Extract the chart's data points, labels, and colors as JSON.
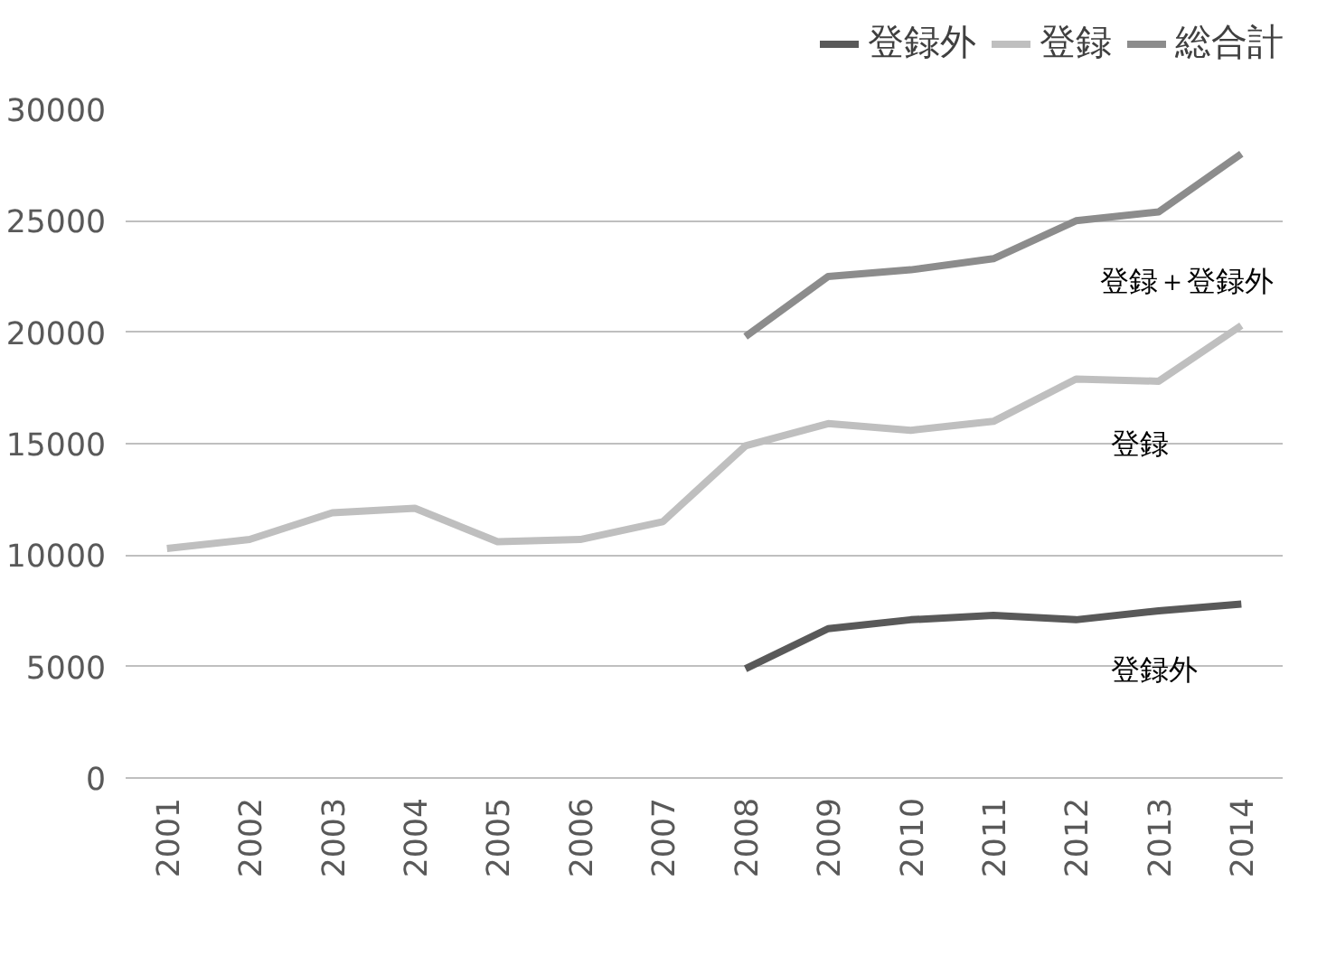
{
  "chart_data": {
    "type": "line",
    "categories": [
      "2001",
      "2002",
      "2003",
      "2004",
      "2005",
      "2006",
      "2007",
      "2008",
      "2009",
      "2010",
      "2011",
      "2012",
      "2013",
      "2014"
    ],
    "series": [
      {
        "name": "登録外",
        "color": "#595959",
        "values": [
          null,
          null,
          null,
          null,
          null,
          null,
          null,
          4900,
          6700,
          7100,
          7300,
          7100,
          7500,
          7800
        ]
      },
      {
        "name": "登録",
        "color": "#bfbfbf",
        "values": [
          10300,
          10700,
          11900,
          12100,
          10600,
          10700,
          11500,
          14900,
          15900,
          15600,
          16000,
          17900,
          17800,
          20300
        ]
      },
      {
        "name": "総合計",
        "color": "#8c8c8c",
        "values": [
          null,
          null,
          null,
          null,
          null,
          null,
          null,
          19800,
          22500,
          22800,
          23300,
          25000,
          25400,
          28000
        ]
      }
    ],
    "ylim": [
      0,
      30000
    ],
    "yticks": [
      0,
      5000,
      10000,
      15000,
      20000,
      25000,
      30000
    ],
    "grid": "y",
    "legend": "top right",
    "marker": "none",
    "line_style": "solid",
    "annotations": [
      "登録＋登録外",
      "登録",
      "登録外"
    ]
  }
}
